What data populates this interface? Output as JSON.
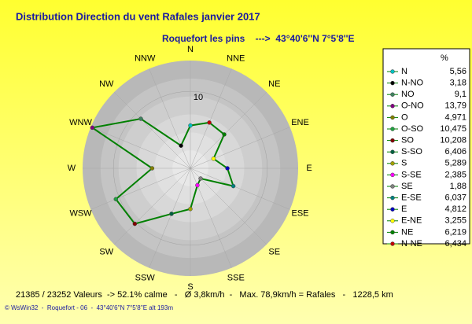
{
  "chart_data": {
    "type": "radar",
    "title": "Distribution Direction du vent Rafales  janvier 2017",
    "subtitle": "Roquefort les pins    --->  43°40'6''N 7°5'8''E",
    "categories": [
      "N",
      "NNE",
      "NE",
      "ENE",
      "E",
      "ESE",
      "SE",
      "SSE",
      "S",
      "SSW",
      "SW",
      "WSW",
      "W",
      "WNW",
      "NW",
      "NNW"
    ],
    "legend_title": "%",
    "directions": [
      "N",
      "N-NO",
      "NO",
      "O-NO",
      "O",
      "O-SO",
      "SO",
      "S-SO",
      "S",
      "S-SE",
      "SE",
      "E-SE",
      "E",
      "E-NE",
      "NE",
      "N-NE"
    ],
    "values": [
      5.56,
      3.18,
      9.1,
      13.79,
      4.971,
      10.475,
      10.208,
      6.406,
      5.289,
      2.385,
      1.88,
      6.037,
      4.812,
      3.255,
      6.219,
      6.434
    ],
    "value_labels": [
      "5,56",
      "3,18",
      "9,1",
      "13,79",
      "4,971",
      "10,475",
      "10,208",
      "6,406",
      "5,289",
      "2,385",
      "1,88",
      "6,037",
      "4,812",
      "3,255",
      "6,219",
      "6,434"
    ],
    "marker_colors": [
      "#00c0c0",
      "#000000",
      "#408060",
      "#800080",
      "#808000",
      "#20a040",
      "#800000",
      "#006040",
      "#a0a000",
      "#ff00ff",
      "#808080",
      "#008080",
      "#0000c0",
      "#ffff00",
      "#008000",
      "#c00000"
    ],
    "line_color": "#008000",
    "rlim": [
      0,
      14
    ],
    "rticks": [
      10
    ],
    "footer": [
      "21385 / 23252 Valeurs  -> 52.1% calme   -   Ø 3,8km/h  -   Max. 78,9km/h = Rafales   -   1228,5 km",
      "© WsWin32  -  Roquefort - 06  -  43°40'6''N 7°5'8''E alt 193m"
    ]
  }
}
